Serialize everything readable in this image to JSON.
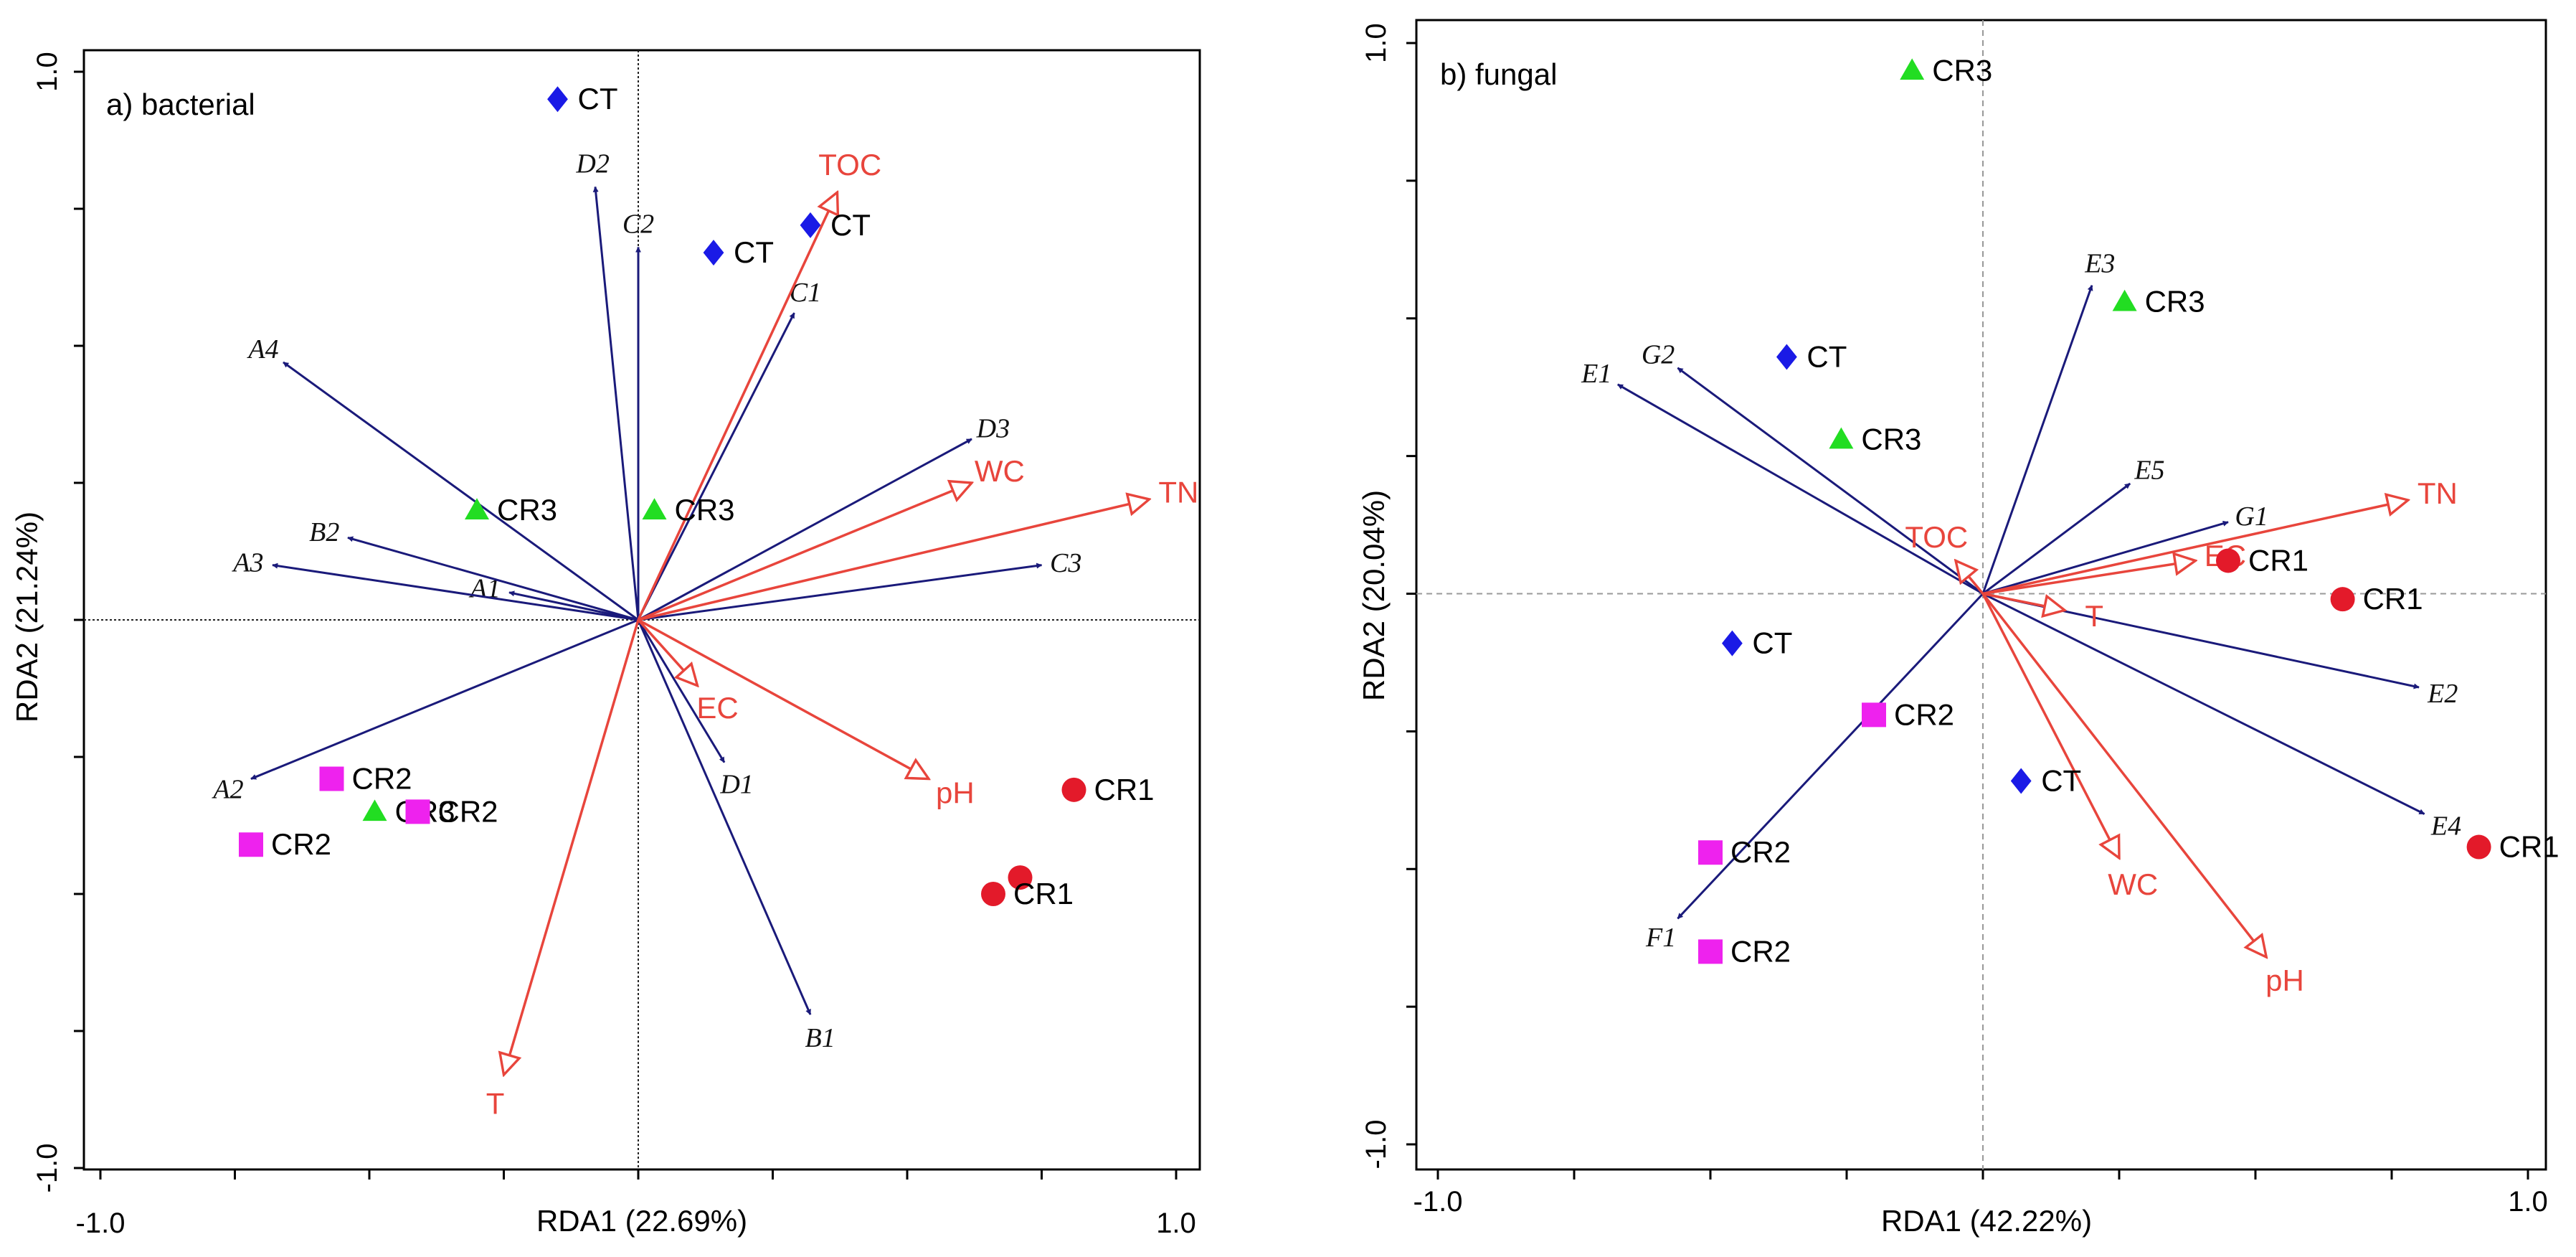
{
  "chart_data": [
    {
      "type": "scatter",
      "title": "a) bacterial",
      "xlabel": "RDA1 (22.69%)",
      "ylabel": "RDA2 (21.24%)",
      "xlim": [
        -1.0,
        1.0
      ],
      "ylim": [
        -1.0,
        1.0
      ],
      "x_tick_labels": [
        "-1.0",
        "1.0"
      ],
      "y_tick_labels": [
        "1.0",
        "-1.0"
      ],
      "zero_lines": true,
      "species_arrows": [
        {
          "label": "A1",
          "x": -0.24,
          "y": 0.05
        },
        {
          "label": "A2",
          "x": -0.72,
          "y": -0.29
        },
        {
          "label": "A3",
          "x": -0.68,
          "y": 0.1
        },
        {
          "label": "A4",
          "x": -0.66,
          "y": 0.47
        },
        {
          "label": "B1",
          "x": 0.32,
          "y": -0.72
        },
        {
          "label": "B2",
          "x": -0.54,
          "y": 0.15
        },
        {
          "label": "C1",
          "x": 0.29,
          "y": 0.56
        },
        {
          "label": "C2",
          "x": 0.0,
          "y": 0.68
        },
        {
          "label": "C3",
          "x": 0.75,
          "y": 0.1
        },
        {
          "label": "D1",
          "x": 0.16,
          "y": -0.26
        },
        {
          "label": "D2",
          "x": -0.08,
          "y": 0.79
        },
        {
          "label": "D3",
          "x": 0.62,
          "y": 0.33
        }
      ],
      "env_arrows": [
        {
          "label": "TOC",
          "x": 0.37,
          "y": 0.78
        },
        {
          "label": "TN",
          "x": 0.95,
          "y": 0.22
        },
        {
          "label": "WC",
          "x": 0.62,
          "y": 0.25
        },
        {
          "label": "EC",
          "x": 0.11,
          "y": -0.12
        },
        {
          "label": "pH",
          "x": 0.54,
          "y": -0.29
        },
        {
          "label": "T",
          "x": -0.25,
          "y": -0.83
        }
      ],
      "samples": [
        {
          "group": "CT",
          "x": -0.15,
          "y": 0.95,
          "label": "CT"
        },
        {
          "group": "CT",
          "x": 0.14,
          "y": 0.67,
          "label": "CT"
        },
        {
          "group": "CT",
          "x": 0.32,
          "y": 0.72,
          "label": "CT"
        },
        {
          "group": "CR3",
          "x": -0.3,
          "y": 0.2,
          "label": "CR3"
        },
        {
          "group": "CR3",
          "x": 0.03,
          "y": 0.2,
          "label": "CR3"
        },
        {
          "group": "CR3",
          "x": -0.49,
          "y": -0.35,
          "label": "CR3"
        },
        {
          "group": "CR2",
          "x": -0.57,
          "y": -0.29,
          "label": "CR2"
        },
        {
          "group": "CR2",
          "x": -0.41,
          "y": -0.35,
          "label": "CR2"
        },
        {
          "group": "CR2",
          "x": -0.72,
          "y": -0.41,
          "label": "CR2"
        },
        {
          "group": "CR1",
          "x": 0.81,
          "y": -0.31,
          "label": "CR1"
        },
        {
          "group": "CR1",
          "x": 0.71,
          "y": -0.47,
          "label": ""
        },
        {
          "group": "CR1",
          "x": 0.66,
          "y": -0.5,
          "label": "CR1"
        }
      ]
    },
    {
      "type": "scatter",
      "title": "b) fungal",
      "xlabel": "RDA1 (42.22%)",
      "ylabel": "RDA2 (20.04%)",
      "xlim": [
        -1.0,
        1.0
      ],
      "ylim": [
        -1.0,
        1.0
      ],
      "x_tick_labels": [
        "-1.0",
        "1.0"
      ],
      "y_tick_labels": [
        "1.0",
        "-1.0"
      ],
      "zero_lines": true,
      "species_arrows": [
        {
          "label": "E1",
          "x": -0.67,
          "y": 0.38
        },
        {
          "label": "E2",
          "x": 0.8,
          "y": -0.17
        },
        {
          "label": "E3",
          "x": 0.2,
          "y": 0.56
        },
        {
          "label": "E4",
          "x": 0.81,
          "y": -0.4
        },
        {
          "label": "E5",
          "x": 0.27,
          "y": 0.2
        },
        {
          "label": "F1",
          "x": -0.56,
          "y": -0.59
        },
        {
          "label": "G1",
          "x": 0.45,
          "y": 0.13
        },
        {
          "label": "G2",
          "x": -0.56,
          "y": 0.41
        }
      ],
      "env_arrows": [
        {
          "label": "TOC",
          "x": -0.05,
          "y": 0.06
        },
        {
          "label": "TN",
          "x": 0.78,
          "y": 0.17
        },
        {
          "label": "EC",
          "x": 0.39,
          "y": 0.06
        },
        {
          "label": "T",
          "x": 0.15,
          "y": -0.03
        },
        {
          "label": "WC",
          "x": 0.25,
          "y": -0.48
        },
        {
          "label": "pH",
          "x": 0.52,
          "y": -0.66
        }
      ],
      "samples": [
        {
          "group": "CR3",
          "x": -0.13,
          "y": 0.95,
          "label": "CR3"
        },
        {
          "group": "CR3",
          "x": 0.26,
          "y": 0.53,
          "label": "CR3"
        },
        {
          "group": "CR3",
          "x": -0.26,
          "y": 0.28,
          "label": "CR3"
        },
        {
          "group": "CT",
          "x": -0.36,
          "y": 0.43,
          "label": "CT"
        },
        {
          "group": "CT",
          "x": -0.46,
          "y": -0.09,
          "label": "CT"
        },
        {
          "group": "CT",
          "x": 0.07,
          "y": -0.34,
          "label": "CT"
        },
        {
          "group": "CR1",
          "x": 0.45,
          "y": 0.06,
          "label": "CR1"
        },
        {
          "group": "CR1",
          "x": 0.66,
          "y": -0.01,
          "label": "CR1"
        },
        {
          "group": "CR1",
          "x": 0.91,
          "y": -0.46,
          "label": "CR1"
        },
        {
          "group": "CR2",
          "x": -0.2,
          "y": -0.22,
          "label": "CR2"
        },
        {
          "group": "CR2",
          "x": -0.5,
          "y": -0.47,
          "label": "CR2"
        },
        {
          "group": "CR2",
          "x": -0.5,
          "y": -0.65,
          "label": "CR2"
        }
      ]
    }
  ],
  "colors": {
    "species_arrow": "#1a1a7a",
    "env_arrow": "#e8453c",
    "CT": "#1a1ae6",
    "CR1": "#e31a2a",
    "CR2": "#ee22ee",
    "CR3": "#22dd22"
  },
  "marker_shapes": {
    "CT": "diamond",
    "CR1": "circle",
    "CR2": "square",
    "CR3": "triangle"
  }
}
